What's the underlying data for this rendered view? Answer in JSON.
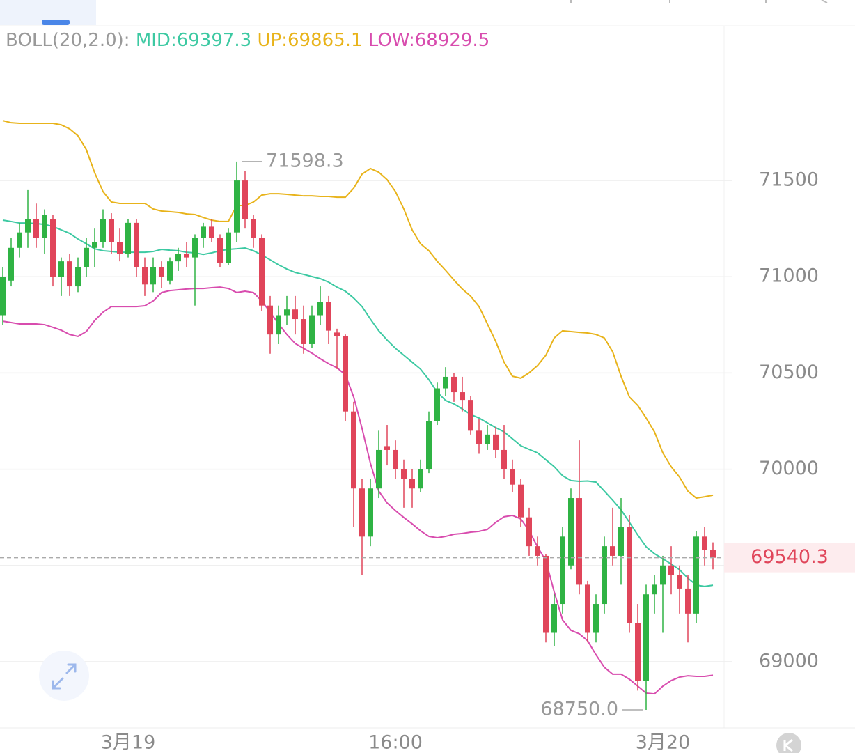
{
  "chart_data": {
    "type": "candlestick",
    "indicator_label": "BOLL(20,2.0):",
    "band_labels": [
      "MID:69397.3",
      "UP:69865.1",
      "LOW:68929.5"
    ],
    "high_label": "71598.3",
    "low_label": "68750.0",
    "last_price_label": "69540.3",
    "up_color": "#2fb344",
    "down_color": "#e0455a",
    "categories": [
      null,
      null,
      null,
      null,
      null,
      null,
      null,
      null,
      null,
      null,
      null,
      null,
      null,
      null,
      null,
      "3月19",
      null,
      null,
      null,
      null,
      null,
      null,
      null,
      null,
      null,
      null,
      null,
      null,
      null,
      null,
      null,
      null,
      null,
      null,
      null,
      null,
      null,
      null,
      null,
      null,
      null,
      null,
      null,
      null,
      null,
      null,
      null,
      "16:00",
      null,
      null,
      null,
      null,
      null,
      null,
      null,
      null,
      null,
      null,
      null,
      null,
      null,
      null,
      null,
      null,
      null,
      null,
      null,
      null,
      null,
      null,
      null,
      null,
      null,
      null,
      null,
      null,
      null,
      null,
      null,
      "3月20",
      null,
      null,
      null,
      null,
      null,
      null
    ],
    "open": [
      70800,
      70980,
      71150,
      71230,
      71300,
      71200,
      71300,
      71000,
      71080,
      70950,
      71050,
      71150,
      71180,
      71300,
      71180,
      71120,
      71280,
      71050,
      70960,
      71050,
      70980,
      71080,
      71120,
      71100,
      71200,
      71260,
      71200,
      71070,
      71230,
      71500,
      71300,
      71200,
      70850,
      70700,
      70800,
      70830,
      70780,
      70650,
      70800,
      70870,
      70710,
      70690,
      70300,
      69900,
      69650,
      69900,
      70120,
      70100,
      70000,
      69950,
      69900,
      70000,
      70250,
      70420,
      70480,
      70400,
      70360,
      70200,
      70130,
      70180,
      70100,
      70000,
      69920,
      69750,
      69600,
      69550,
      69150,
      69300,
      69500,
      69850,
      69400,
      69150,
      69300,
      69600,
      69550,
      69700,
      69200,
      68900,
      69350,
      69400,
      69500,
      69450,
      69380,
      69250,
      69650,
      69580
    ],
    "high": [
      71050,
      71200,
      71280,
      71450,
      71380,
      71350,
      71320,
      71100,
      71120,
      71100,
      71200,
      71250,
      71350,
      71330,
      71250,
      71300,
      71300,
      71100,
      71100,
      71080,
      71100,
      71150,
      71180,
      71220,
      71280,
      71300,
      71220,
      71250,
      71598.3,
      71550,
      71320,
      71220,
      70900,
      70850,
      70900,
      70900,
      70850,
      70850,
      70950,
      70900,
      70730,
      70700,
      70350,
      69950,
      69950,
      70200,
      70230,
      70150,
      70050,
      70000,
      70050,
      70300,
      70450,
      70530,
      70500,
      70480,
      70380,
      70260,
      70230,
      70220,
      70230,
      70050,
      69950,
      69800,
      69650,
      69560,
      69350,
      69700,
      69900,
      70150,
      69420,
      69350,
      69650,
      69800,
      69850,
      69760,
      69300,
      69400,
      69450,
      69550,
      69600,
      69500,
      69450,
      69680,
      69700,
      69620
    ],
    "low": [
      70750,
      70950,
      71100,
      71150,
      71150,
      71120,
      70950,
      70900,
      70900,
      70920,
      71000,
      71050,
      71150,
      71120,
      71080,
      71100,
      71000,
      70900,
      70920,
      70940,
      70960,
      71030,
      71050,
      70850,
      71150,
      71180,
      71050,
      71060,
      71180,
      71250,
      71150,
      70820,
      70600,
      70650,
      70750,
      70700,
      70600,
      70630,
      70750,
      70650,
      70520,
      70250,
      69700,
      69450,
      69600,
      69850,
      70020,
      69950,
      69800,
      69800,
      69880,
      69980,
      70230,
      70380,
      70350,
      70300,
      70180,
      70080,
      70100,
      70060,
      69950,
      69880,
      69700,
      69550,
      69500,
      69100,
      69080,
      69250,
      69480,
      69350,
      69100,
      69100,
      69250,
      69500,
      69400,
      69150,
      68850,
      68750,
      69250,
      69150,
      69350,
      69250,
      69100,
      69200,
      69500,
      69480
    ],
    "close": [
      71000,
      71150,
      71230,
      71300,
      71200,
      71320,
      71000,
      71080,
      70950,
      71050,
      71150,
      71180,
      71300,
      71180,
      71120,
      71280,
      71050,
      70960,
      71050,
      71000,
      71080,
      71120,
      71100,
      71200,
      71260,
      71200,
      71070,
      71230,
      71500,
      71300,
      71200,
      70850,
      70700,
      70800,
      70830,
      70780,
      70650,
      70800,
      70870,
      70720,
      70690,
      70300,
      69900,
      69650,
      69900,
      70100,
      70100,
      70000,
      69950,
      69900,
      70000,
      70250,
      70420,
      70480,
      70400,
      70360,
      70200,
      70130,
      70180,
      70100,
      70000,
      69920,
      69750,
      69600,
      69550,
      69150,
      69300,
      69650,
      69850,
      69400,
      69150,
      69300,
      69600,
      69550,
      69700,
      69200,
      68900,
      69350,
      69400,
      69500,
      69450,
      69380,
      69250,
      69650,
      69580,
      69540.3
    ],
    "bands": [
      {
        "color": "#3cc9a2",
        "values": [
          71294,
          71287,
          71279,
          71279,
          71276,
          71272,
          71261,
          71243,
          71225,
          71196,
          71171,
          71145,
          71135,
          71131,
          71127,
          71127,
          71127,
          71127,
          71131,
          71142,
          71138,
          71135,
          71127,
          71124,
          71116,
          71124,
          71135,
          71142,
          71145,
          71149,
          71135,
          71113,
          71088,
          71062,
          71040,
          71022,
          71012,
          71001,
          70990,
          70972,
          70946,
          70925,
          70889,
          70845,
          70780,
          70719,
          70671,
          70628,
          70592,
          70556,
          70520,
          70465,
          70400,
          70357,
          70339,
          70313,
          70284,
          70266,
          70241,
          70216,
          70194,
          70158,
          70122,
          70103,
          70085,
          70049,
          70013,
          69966,
          69941,
          69937,
          69939,
          69933,
          69886,
          69839,
          69789,
          69724,
          69658,
          69597,
          69561,
          69535,
          69507,
          69478,
          69434,
          69398,
          69391,
          69397.3
        ]
      },
      {
        "color": "#e8b31a",
        "values": [
          71811,
          71800,
          71797,
          71797,
          71797,
          71797,
          71797,
          71789,
          71768,
          71732,
          71660,
          71540,
          71442,
          71388,
          71381,
          71381,
          71381,
          71381,
          71352,
          71341,
          71338,
          71334,
          71326,
          71323,
          71308,
          71294,
          71287,
          71287,
          71370,
          71370,
          71388,
          71424,
          71431,
          71431,
          71428,
          71424,
          71420,
          71420,
          71417,
          71417,
          71413,
          71413,
          71460,
          71533,
          71562,
          71543,
          71504,
          71442,
          71352,
          71243,
          71171,
          71135,
          71080,
          71033,
          70983,
          70936,
          70899,
          70845,
          70755,
          70664,
          70556,
          70483,
          70473,
          70501,
          70538,
          70592,
          70682,
          70719,
          70715,
          70711,
          70708,
          70700,
          70682,
          70610,
          70483,
          70375,
          70331,
          70266,
          70194,
          70085,
          70013,
          69959,
          69886,
          69850,
          69857,
          69865.1
        ]
      },
      {
        "color": "#d84cae",
        "values": [
          70769,
          70762,
          70755,
          70755,
          70755,
          70751,
          70737,
          70722,
          70700,
          70690,
          70715,
          70773,
          70816,
          70845,
          70845,
          70845,
          70845,
          70849,
          70874,
          70918,
          70928,
          70932,
          70936,
          70939,
          70939,
          70943,
          70946,
          70939,
          70918,
          70925,
          70918,
          70874,
          70816,
          70755,
          70700,
          70653,
          70628,
          70603,
          70574,
          70548,
          70527,
          70491,
          70375,
          70212,
          70031,
          69886,
          69825,
          69785,
          69749,
          69716,
          69680,
          69651,
          69644,
          69651,
          69662,
          69666,
          69673,
          69677,
          69687,
          69724,
          69753,
          69760,
          69742,
          69680,
          69597,
          69525,
          69362,
          69217,
          69163,
          69145,
          69109,
          69036,
          68971,
          68935,
          68935,
          68909,
          68873,
          68837,
          68833,
          68873,
          68902,
          68920,
          68927,
          68924,
          68924,
          68929.5
        ]
      }
    ],
    "ylim": [
      68656,
      72300
    ],
    "yticks": [
      69000,
      69500,
      70000,
      70500,
      71000,
      71500
    ],
    "grid": true
  }
}
